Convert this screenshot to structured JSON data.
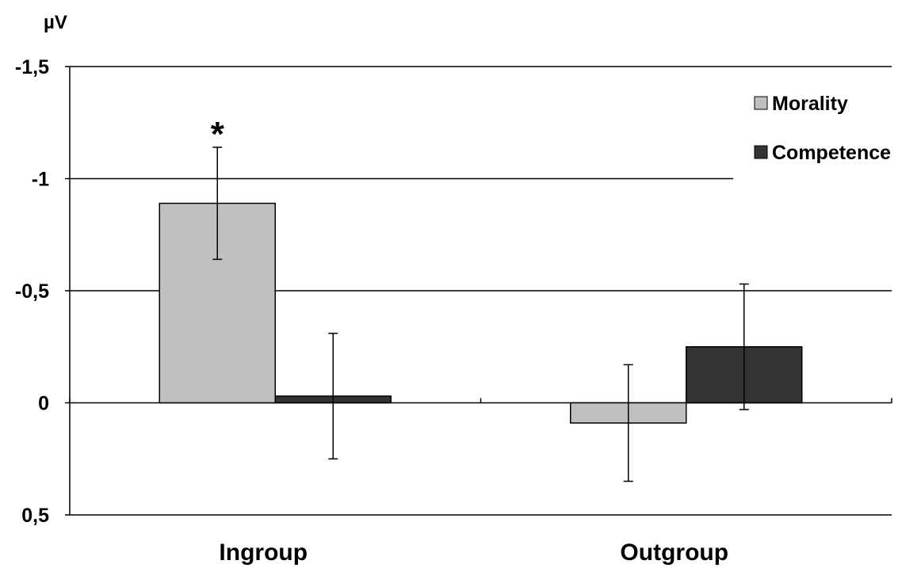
{
  "chart_data": {
    "type": "bar",
    "title": "",
    "unit_label": "µV",
    "categories": [
      "Ingroup",
      "Outgroup"
    ],
    "y_ticks": [
      -1.5,
      -1,
      -0.5,
      0,
      0.5
    ],
    "y_tick_labels": [
      "-1,5",
      "-1",
      "-0,5",
      "0",
      "0,5"
    ],
    "ylim": [
      0.5,
      -1.5
    ],
    "y_axis_inverted": true,
    "grid": "horizontal",
    "legend_position": "top-right",
    "series": [
      {
        "name": "Morality",
        "color": "#c0c0c0",
        "values": [
          -0.89,
          0.09
        ],
        "error": [
          0.25,
          0.26
        ]
      },
      {
        "name": "Competence",
        "color": "#333333",
        "values": [
          -0.03,
          -0.25
        ],
        "error": [
          0.28,
          0.28
        ]
      }
    ],
    "annotations": [
      {
        "text": "*",
        "category": "Ingroup",
        "series": "Morality"
      }
    ]
  }
}
